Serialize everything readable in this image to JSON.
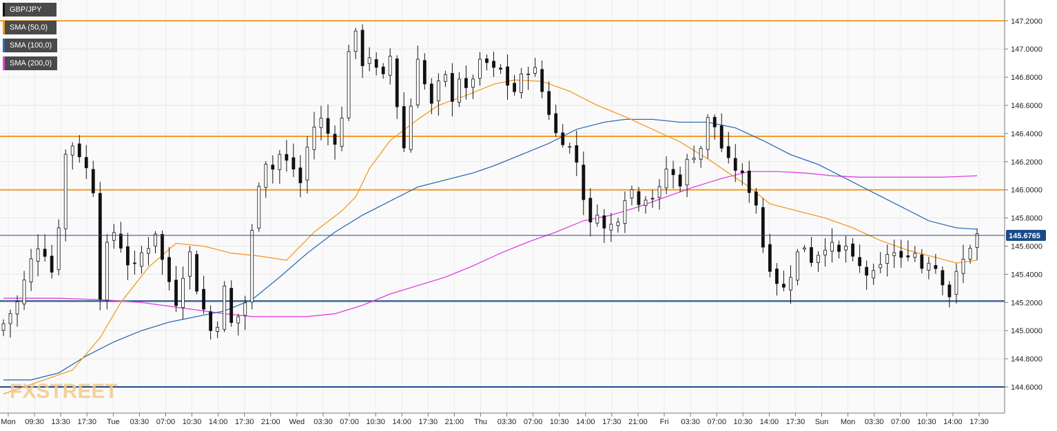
{
  "chart_data": {
    "type": "candlestick",
    "symbol": "GBP/JPY",
    "ylim": [
      144.3,
      147.3
    ],
    "y_ticks": [
      "147.2000",
      "147.0000",
      "146.8000",
      "146.6000",
      "146.4000",
      "146.2000",
      "146.0000",
      "145.8000",
      "145.6000",
      "145.4000",
      "145.2000",
      "145.0000",
      "144.8000",
      "144.6000"
    ],
    "x_ticks": [
      "Mon",
      "09:30",
      "13:30",
      "17:30",
      "Tue",
      "03:30",
      "07:00",
      "10:30",
      "14:00",
      "17:30",
      "21:00",
      "Wed",
      "03:30",
      "07:00",
      "10:30",
      "14:00",
      "17:30",
      "21:00",
      "Thu",
      "03:30",
      "07:00",
      "10:30",
      "14:00",
      "17:30",
      "21:00",
      "Fri",
      "03:30",
      "07:00",
      "10:30",
      "14:00",
      "17:30",
      "Sun",
      "Mon",
      "03:30",
      "07:00",
      "10:30",
      "14:00",
      "17:30"
    ],
    "last_price": "145.6765",
    "horizontal_levels": {
      "resistance": [
        147.2,
        146.38,
        146.0
      ],
      "support": [
        145.21,
        144.6
      ]
    },
    "close_path": [
      [
        0,
        145.05
      ],
      [
        2,
        145.2
      ],
      [
        3,
        145.35
      ],
      [
        4,
        145.5
      ],
      [
        5,
        145.6
      ],
      [
        6,
        145.55
      ],
      [
        7,
        145.42
      ],
      [
        8,
        145.75
      ],
      [
        9,
        146.25
      ],
      [
        10,
        146.32
      ],
      [
        11,
        146.25
      ],
      [
        12,
        146.15
      ],
      [
        13,
        146.0
      ],
      [
        14,
        145.25
      ],
      [
        15,
        145.6
      ],
      [
        16,
        145.7
      ],
      [
        17,
        145.6
      ],
      [
        18,
        145.48
      ],
      [
        19,
        145.45
      ],
      [
        20,
        145.55
      ],
      [
        21,
        145.6
      ],
      [
        22,
        145.7
      ],
      [
        23,
        145.5
      ],
      [
        24,
        145.35
      ],
      [
        25,
        145.2
      ],
      [
        26,
        145.4
      ],
      [
        27,
        145.55
      ],
      [
        28,
        145.3
      ],
      [
        29,
        145.15
      ],
      [
        30,
        145.0
      ],
      [
        31,
        145.05
      ],
      [
        32,
        145.3
      ],
      [
        33,
        145.05
      ],
      [
        34,
        145.1
      ],
      [
        35,
        145.2
      ],
      [
        36,
        145.7
      ],
      [
        37,
        146.05
      ],
      [
        38,
        146.2
      ],
      [
        39,
        146.15
      ],
      [
        40,
        146.25
      ],
      [
        41,
        146.2
      ],
      [
        42,
        146.15
      ],
      [
        43,
        146.05
      ],
      [
        44,
        146.3
      ],
      [
        45,
        146.45
      ],
      [
        46,
        146.5
      ],
      [
        47,
        146.4
      ],
      [
        48,
        146.35
      ],
      [
        49,
        146.5
      ],
      [
        50,
        147.0
      ],
      [
        51,
        147.1
      ],
      [
        52,
        146.9
      ],
      [
        53,
        146.95
      ],
      [
        54,
        146.85
      ],
      [
        55,
        146.8
      ],
      [
        56,
        146.95
      ],
      [
        57,
        146.6
      ],
      [
        58,
        146.3
      ],
      [
        59,
        146.6
      ],
      [
        60,
        146.95
      ],
      [
        61,
        146.75
      ],
      [
        62,
        146.6
      ],
      [
        63,
        146.75
      ],
      [
        64,
        146.8
      ],
      [
        65,
        146.65
      ],
      [
        66,
        146.8
      ],
      [
        67,
        146.7
      ],
      [
        68,
        146.8
      ],
      [
        69,
        146.9
      ],
      [
        70,
        146.9
      ],
      [
        71,
        146.85
      ],
      [
        72,
        146.85
      ],
      [
        73,
        146.75
      ],
      [
        74,
        146.7
      ],
      [
        75,
        146.8
      ],
      [
        76,
        146.85
      ],
      [
        77,
        146.85
      ],
      [
        78,
        146.7
      ],
      [
        79,
        146.55
      ],
      [
        80,
        146.4
      ],
      [
        81,
        146.35
      ],
      [
        82,
        146.3
      ],
      [
        83,
        146.2
      ],
      [
        84,
        145.95
      ],
      [
        85,
        145.75
      ],
      [
        86,
        145.85
      ],
      [
        87,
        145.72
      ],
      [
        88,
        145.75
      ],
      [
        89,
        145.8
      ],
      [
        90,
        145.95
      ],
      [
        91,
        146.0
      ],
      [
        92,
        145.92
      ],
      [
        93,
        145.95
      ],
      [
        94,
        145.95
      ],
      [
        95,
        146.0
      ],
      [
        96,
        146.15
      ],
      [
        97,
        146.1
      ],
      [
        98,
        146.05
      ],
      [
        99,
        146.2
      ],
      [
        100,
        146.25
      ],
      [
        101,
        146.3
      ],
      [
        102,
        146.5
      ],
      [
        103,
        146.45
      ],
      [
        104,
        146.3
      ],
      [
        105,
        146.2
      ],
      [
        106,
        146.15
      ],
      [
        107,
        146.1
      ],
      [
        108,
        146.0
      ],
      [
        109,
        145.9
      ],
      [
        110,
        145.6
      ],
      [
        111,
        145.45
      ],
      [
        112,
        145.35
      ],
      [
        113,
        145.3
      ],
      [
        114,
        145.4
      ],
      [
        115,
        145.55
      ],
      [
        116,
        145.6
      ],
      [
        117,
        145.5
      ],
      [
        118,
        145.55
      ],
      [
        119,
        145.6
      ],
      [
        120,
        145.6
      ],
      [
        121,
        145.55
      ],
      [
        122,
        145.6
      ],
      [
        123,
        145.5
      ],
      [
        124,
        145.45
      ],
      [
        125,
        145.4
      ],
      [
        126,
        145.4
      ],
      [
        127,
        145.45
      ],
      [
        128,
        145.55
      ],
      [
        129,
        145.55
      ],
      [
        130,
        145.5
      ],
      [
        131,
        145.55
      ],
      [
        132,
        145.55
      ],
      [
        133,
        145.45
      ],
      [
        134,
        145.5
      ],
      [
        135,
        145.45
      ],
      [
        136,
        145.35
      ],
      [
        137,
        145.25
      ],
      [
        138,
        145.4
      ],
      [
        139,
        145.5
      ],
      [
        140,
        145.6
      ],
      [
        141,
        145.68
      ]
    ],
    "sma_50": [
      [
        0,
        144.55
      ],
      [
        10,
        144.72
      ],
      [
        14,
        144.95
      ],
      [
        17,
        145.2
      ],
      [
        21,
        145.45
      ],
      [
        25,
        145.62
      ],
      [
        29,
        145.6
      ],
      [
        33,
        145.55
      ],
      [
        37,
        145.53
      ],
      [
        41,
        145.5
      ],
      [
        45,
        145.7
      ],
      [
        49,
        145.85
      ],
      [
        51,
        145.95
      ],
      [
        53,
        146.15
      ],
      [
        56,
        146.35
      ],
      [
        60,
        146.5
      ],
      [
        63,
        146.6
      ],
      [
        67,
        146.67
      ],
      [
        71,
        146.75
      ],
      [
        74,
        146.78
      ],
      [
        78,
        146.77
      ],
      [
        82,
        146.7
      ],
      [
        86,
        146.6
      ],
      [
        90,
        146.52
      ],
      [
        94,
        146.43
      ],
      [
        98,
        146.34
      ],
      [
        102,
        146.22
      ],
      [
        105,
        146.12
      ],
      [
        108,
        146.02
      ],
      [
        111,
        145.9
      ],
      [
        115,
        145.85
      ],
      [
        119,
        145.8
      ],
      [
        123,
        145.73
      ],
      [
        127,
        145.64
      ],
      [
        131,
        145.57
      ],
      [
        135,
        145.52
      ],
      [
        138,
        145.48
      ],
      [
        141,
        145.5
      ]
    ],
    "sma_100": [
      [
        0,
        144.65
      ],
      [
        4,
        144.65
      ],
      [
        8,
        144.7
      ],
      [
        12,
        144.82
      ],
      [
        16,
        144.92
      ],
      [
        20,
        145.0
      ],
      [
        24,
        145.06
      ],
      [
        28,
        145.1
      ],
      [
        32,
        145.14
      ],
      [
        36,
        145.22
      ],
      [
        40,
        145.38
      ],
      [
        44,
        145.55
      ],
      [
        48,
        145.7
      ],
      [
        52,
        145.82
      ],
      [
        56,
        145.92
      ],
      [
        60,
        146.02
      ],
      [
        64,
        146.07
      ],
      [
        68,
        146.12
      ],
      [
        71,
        146.17
      ],
      [
        75,
        146.25
      ],
      [
        79,
        146.33
      ],
      [
        83,
        146.43
      ],
      [
        87,
        146.48
      ],
      [
        90,
        146.5
      ],
      [
        94,
        146.5
      ],
      [
        98,
        146.48
      ],
      [
        102,
        146.48
      ],
      [
        106,
        146.44
      ],
      [
        110,
        146.35
      ],
      [
        114,
        146.25
      ],
      [
        118,
        146.18
      ],
      [
        122,
        146.08
      ],
      [
        126,
        145.98
      ],
      [
        130,
        145.88
      ],
      [
        134,
        145.78
      ],
      [
        138,
        145.73
      ],
      [
        141,
        145.72
      ]
    ],
    "sma_200": [
      [
        0,
        145.23
      ],
      [
        8,
        145.23
      ],
      [
        14,
        145.22
      ],
      [
        20,
        145.2
      ],
      [
        26,
        145.16
      ],
      [
        32,
        145.12
      ],
      [
        36,
        145.1
      ],
      [
        40,
        145.1
      ],
      [
        44,
        145.1
      ],
      [
        48,
        145.12
      ],
      [
        52,
        145.18
      ],
      [
        56,
        145.26
      ],
      [
        60,
        145.32
      ],
      [
        64,
        145.38
      ],
      [
        68,
        145.46
      ],
      [
        72,
        145.55
      ],
      [
        76,
        145.63
      ],
      [
        80,
        145.7
      ],
      [
        84,
        145.78
      ],
      [
        88,
        145.82
      ],
      [
        92,
        145.88
      ],
      [
        96,
        145.95
      ],
      [
        100,
        146.02
      ],
      [
        104,
        146.08
      ],
      [
        108,
        146.13
      ],
      [
        112,
        146.13
      ],
      [
        116,
        146.12
      ],
      [
        120,
        146.1
      ],
      [
        124,
        146.09
      ],
      [
        128,
        146.09
      ],
      [
        132,
        146.09
      ],
      [
        136,
        146.09
      ],
      [
        141,
        146.1
      ]
    ]
  },
  "legend": [
    {
      "label": "GBP/JPY",
      "color": "#111111"
    },
    {
      "label": "SMA (50,0)",
      "color": "#f59a23"
    },
    {
      "label": "SMA (100,0)",
      "color": "#2f6bb5"
    },
    {
      "label": "SMA (200,0)",
      "color": "#e040e0"
    }
  ],
  "colors": {
    "resistance": "#f59a23",
    "support": "#1a4a8a",
    "sma50": "#f59a23",
    "sma100": "#2f6bb5",
    "sma200": "#e040e0",
    "price_line": "#1a4a8a",
    "badge": "#1a4a8a"
  },
  "watermark": "FXSTREET"
}
